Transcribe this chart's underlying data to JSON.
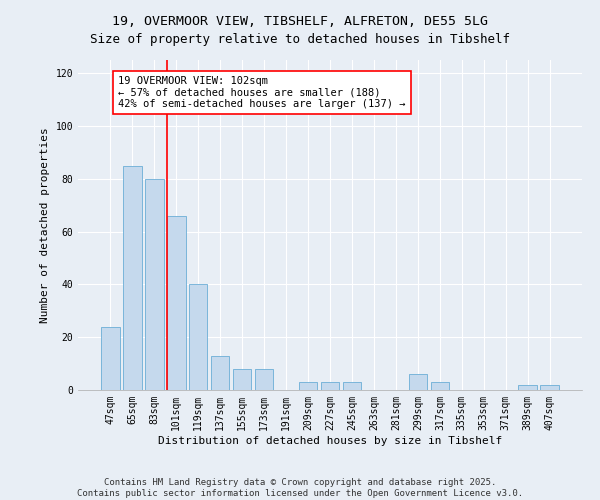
{
  "title_line1": "19, OVERMOOR VIEW, TIBSHELF, ALFRETON, DE55 5LG",
  "title_line2": "Size of property relative to detached houses in Tibshelf",
  "xlabel": "Distribution of detached houses by size in Tibshelf",
  "ylabel": "Number of detached properties",
  "categories": [
    "47sqm",
    "65sqm",
    "83sqm",
    "101sqm",
    "119sqm",
    "137sqm",
    "155sqm",
    "173sqm",
    "191sqm",
    "209sqm",
    "227sqm",
    "245sqm",
    "263sqm",
    "281sqm",
    "299sqm",
    "317sqm",
    "335sqm",
    "353sqm",
    "371sqm",
    "389sqm",
    "407sqm"
  ],
  "values": [
    24,
    85,
    80,
    66,
    40,
    13,
    8,
    8,
    0,
    3,
    3,
    3,
    0,
    0,
    6,
    3,
    0,
    0,
    0,
    2,
    2
  ],
  "bar_color": "#c5d9ed",
  "bar_edge_color": "#6baed6",
  "red_line_x": 3.0,
  "annotation_text": "19 OVERMOOR VIEW: 102sqm\n← 57% of detached houses are smaller (188)\n42% of semi-detached houses are larger (137) →",
  "annotation_box_color": "white",
  "annotation_box_edge_color": "red",
  "ylim": [
    0,
    125
  ],
  "yticks": [
    0,
    20,
    40,
    60,
    80,
    100,
    120
  ],
  "footer_line1": "Contains HM Land Registry data © Crown copyright and database right 2025.",
  "footer_line2": "Contains public sector information licensed under the Open Government Licence v3.0.",
  "background_color": "#e8eef5",
  "plot_background_color": "#e8eef5",
  "title_fontsize": 9.5,
  "axis_label_fontsize": 8,
  "tick_fontsize": 7,
  "annotation_fontsize": 7.5,
  "footer_fontsize": 6.5
}
